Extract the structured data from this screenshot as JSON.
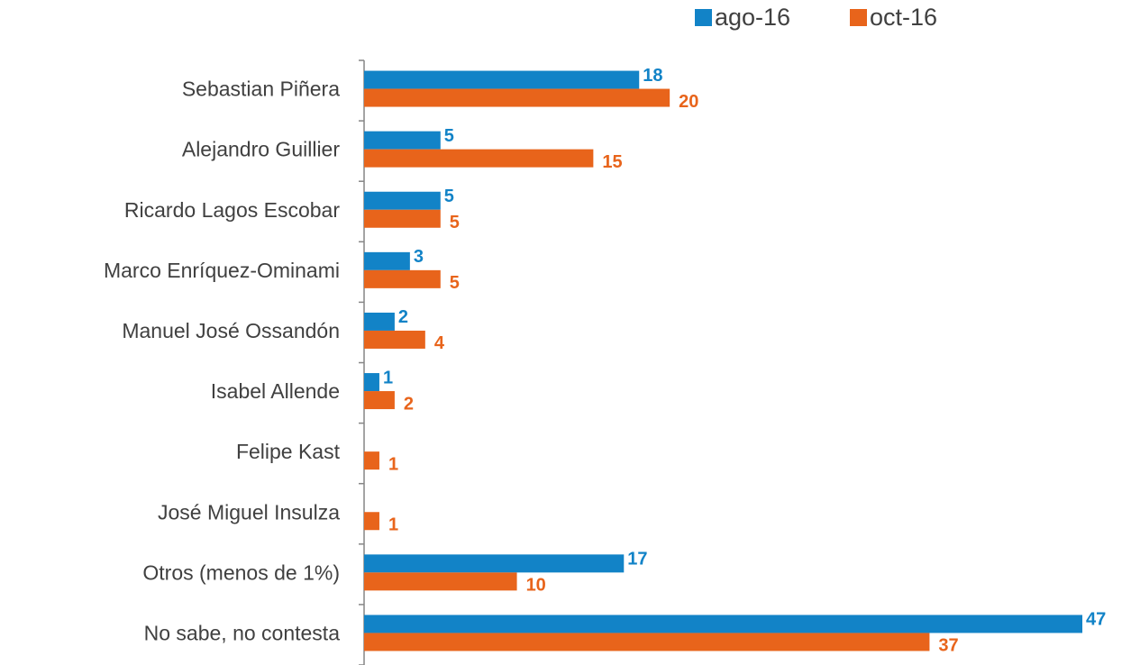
{
  "chart_data": {
    "type": "hbar",
    "categories": [
      "Sebastian Piñera",
      "Alejandro Guillier",
      "Ricardo Lagos Escobar",
      "Marco Enríquez-Ominami",
      "Manuel José Ossandón",
      "Isabel Allende",
      "Felipe Kast",
      "José Miguel Insulza",
      "Otros (menos de 1%)",
      "No sabe, no contesta"
    ],
    "series": [
      {
        "name": "ago-16",
        "color": "#1283c7",
        "values": [
          18,
          5,
          5,
          3,
          2,
          1,
          null,
          null,
          17,
          47
        ]
      },
      {
        "name": "oct-16",
        "color": "#e8641b",
        "values": [
          20,
          15,
          5,
          5,
          4,
          2,
          1,
          1,
          10,
          37
        ]
      }
    ],
    "xlim": [
      0,
      47
    ],
    "legend": "top-right"
  }
}
